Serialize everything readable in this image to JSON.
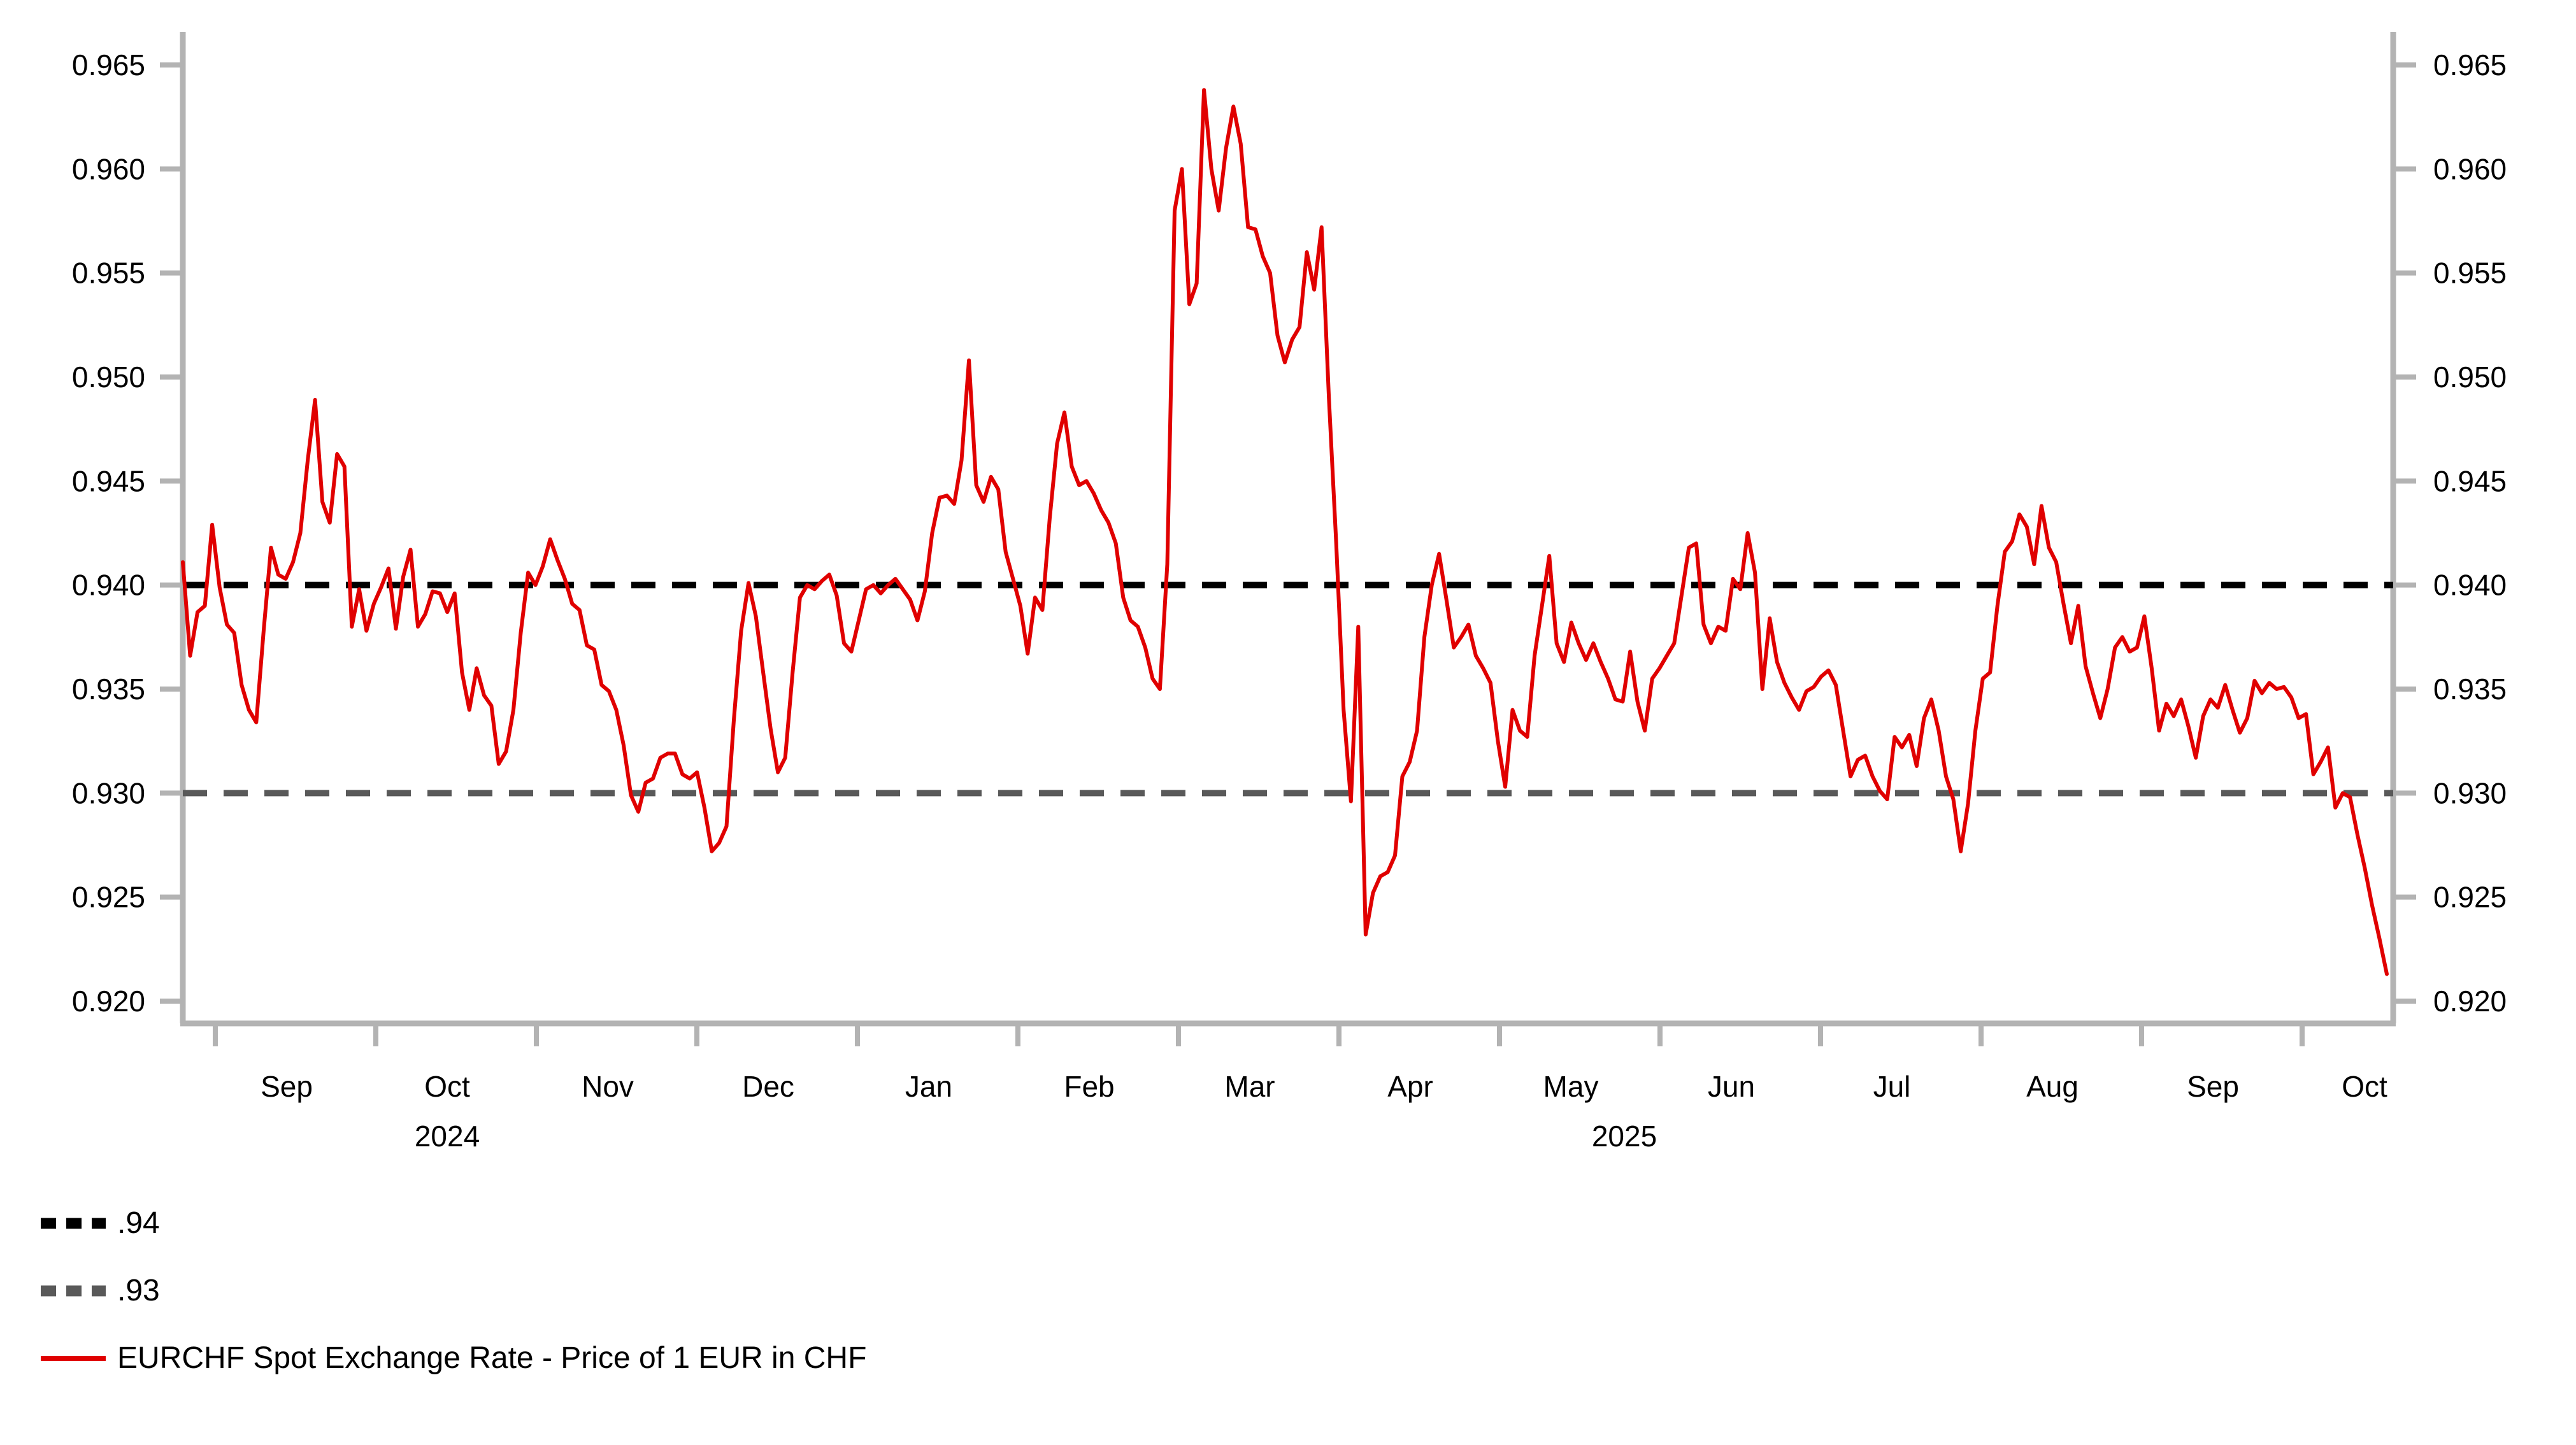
{
  "chart_data": {
    "type": "line",
    "title": "",
    "x_axis": {
      "month_tick_labels": [
        "Sep",
        "Oct",
        "Nov",
        "Dec",
        "Jan",
        "Feb",
        "Mar",
        "Apr",
        "May",
        "Jun",
        "Jul",
        "Aug",
        "Sep",
        "Oct"
      ],
      "year_labels": [
        "2024",
        "2025"
      ]
    },
    "y_axis": {
      "tick_labels": [
        "0.920",
        "0.925",
        "0.930",
        "0.935",
        "0.940",
        "0.945",
        "0.950",
        "0.955",
        "0.960",
        "0.965"
      ],
      "tick_values": [
        0.92,
        0.925,
        0.93,
        0.935,
        0.94,
        0.945,
        0.95,
        0.955,
        0.96,
        0.965
      ],
      "range": [
        0.919,
        0.9665
      ],
      "sides": "both",
      "grid": false
    },
    "reference_lines": [
      {
        "label": ".94",
        "value": 0.94,
        "color": "#000000",
        "style": "dashed"
      },
      {
        "label": ".93",
        "value": 0.93,
        "color": "#595959",
        "style": "dashed"
      }
    ],
    "series": [
      {
        "name": "EURCHF Spot Exchange Rate - Price of 1 EUR in CHF",
        "color": "#e00000",
        "start_month_offset": -0.2,
        "end_month_offset": 13.53,
        "values": [
          0.9411,
          0.9366,
          0.9387,
          0.939,
          0.9429,
          0.9399,
          0.9381,
          0.9377,
          0.9352,
          0.934,
          0.9334,
          0.9378,
          0.9418,
          0.9405,
          0.9403,
          0.9411,
          0.9425,
          0.946,
          0.9489,
          0.944,
          0.943,
          0.9463,
          0.9457,
          0.938,
          0.9398,
          0.9378,
          0.9391,
          0.9399,
          0.9408,
          0.9379,
          0.9404,
          0.9417,
          0.938,
          0.9386,
          0.9397,
          0.9396,
          0.9387,
          0.9396,
          0.9358,
          0.934,
          0.936,
          0.9347,
          0.9342,
          0.9314,
          0.932,
          0.934,
          0.9377,
          0.9406,
          0.94,
          0.9409,
          0.9422,
          0.9412,
          0.9403,
          0.9391,
          0.9388,
          0.9371,
          0.9369,
          0.9352,
          0.9349,
          0.934,
          0.9323,
          0.9299,
          0.9291,
          0.9305,
          0.9307,
          0.9317,
          0.9319,
          0.9319,
          0.9309,
          0.9307,
          0.931,
          0.9293,
          0.9272,
          0.9276,
          0.9284,
          0.9335,
          0.9378,
          0.9401,
          0.9385,
          0.9358,
          0.9331,
          0.931,
          0.9317,
          0.9358,
          0.9394,
          0.94,
          0.9398,
          0.9402,
          0.9405,
          0.9395,
          0.9372,
          0.9368,
          0.9383,
          0.9398,
          0.94,
          0.9396,
          0.94,
          0.9403,
          0.9398,
          0.9393,
          0.9383,
          0.9397,
          0.9425,
          0.9442,
          0.9443,
          0.9439,
          0.946,
          0.9508,
          0.9448,
          0.944,
          0.9452,
          0.9446,
          0.9416,
          0.9403,
          0.939,
          0.9367,
          0.9394,
          0.9388,
          0.9432,
          0.9468,
          0.9483,
          0.9457,
          0.9448,
          0.945,
          0.9444,
          0.9436,
          0.943,
          0.942,
          0.9394,
          0.9383,
          0.938,
          0.937,
          0.9355,
          0.935,
          0.941,
          0.958,
          0.96,
          0.9535,
          0.9545,
          0.9638,
          0.96,
          0.958,
          0.961,
          0.963,
          0.9612,
          0.9572,
          0.9571,
          0.9558,
          0.955,
          0.952,
          0.9507,
          0.9518,
          0.9524,
          0.956,
          0.9542,
          0.9572,
          0.949,
          0.942,
          0.934,
          0.9296,
          0.938,
          0.9232,
          0.9252,
          0.926,
          0.9262,
          0.927,
          0.9308,
          0.9315,
          0.933,
          0.9375,
          0.94,
          0.9415,
          0.9393,
          0.937,
          0.9375,
          0.9381,
          0.9366,
          0.936,
          0.9353,
          0.9325,
          0.9303,
          0.934,
          0.933,
          0.9327,
          0.9366,
          0.939,
          0.9414,
          0.9372,
          0.9363,
          0.9382,
          0.9372,
          0.9364,
          0.9372,
          0.9363,
          0.9355,
          0.9345,
          0.9344,
          0.9368,
          0.9344,
          0.933,
          0.9355,
          0.936,
          0.9366,
          0.9372,
          0.9395,
          0.9418,
          0.942,
          0.9381,
          0.9372,
          0.938,
          0.9378,
          0.9403,
          0.9398,
          0.9425,
          0.9406,
          0.935,
          0.9384,
          0.9363,
          0.9353,
          0.9346,
          0.934,
          0.9349,
          0.9351,
          0.9356,
          0.9359,
          0.9352,
          0.933,
          0.9308,
          0.9316,
          0.9318,
          0.9308,
          0.9301,
          0.9297,
          0.9327,
          0.9322,
          0.9328,
          0.9313,
          0.9336,
          0.9345,
          0.933,
          0.9308,
          0.9297,
          0.9272,
          0.9295,
          0.933,
          0.9355,
          0.9358,
          0.939,
          0.9416,
          0.9421,
          0.9434,
          0.9428,
          0.941,
          0.9438,
          0.9418,
          0.9411,
          0.9391,
          0.9372,
          0.939,
          0.9361,
          0.9348,
          0.9336,
          0.935,
          0.937,
          0.9375,
          0.9368,
          0.937,
          0.9385,
          0.936,
          0.933,
          0.9343,
          0.9337,
          0.9345,
          0.9332,
          0.9317,
          0.9337,
          0.9345,
          0.9341,
          0.9352,
          0.934,
          0.9329,
          0.9336,
          0.9354,
          0.9348,
          0.9353,
          0.935,
          0.9351,
          0.9346,
          0.9336,
          0.9338,
          0.9309,
          0.9315,
          0.9322,
          0.9293,
          0.93,
          0.9298,
          0.928,
          0.9264,
          0.9246,
          0.923,
          0.9213
        ]
      }
    ]
  },
  "legend": {
    "items": [
      {
        "label": ".94",
        "swatch_color": "#000000",
        "swatch_style": "dashed"
      },
      {
        "label": ".93",
        "swatch_color": "#595959",
        "swatch_style": "dashed"
      },
      {
        "label": "EURCHF Spot Exchange Rate - Price of 1 EUR in CHF",
        "swatch_color": "#e00000",
        "swatch_style": "solid"
      }
    ]
  },
  "colors": {
    "axis": "#b3b3b3",
    "tick_text": "#000000",
    "line": "#e00000",
    "ref_black": "#000000",
    "ref_gray": "#595959",
    "background": "#ffffff"
  }
}
